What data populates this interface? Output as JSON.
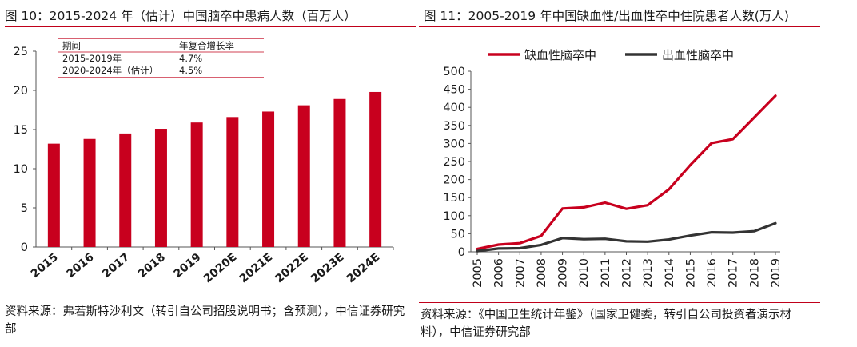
{
  "chart_data": [
    {
      "type": "bar",
      "title": "图 10：2015-2024 年（估计）中国脑卒中患病人数（百万人）",
      "categories": [
        "2015",
        "2016",
        "2017",
        "2018",
        "2019",
        "2020E",
        "2021E",
        "2022E",
        "2023E",
        "2024E"
      ],
      "values": [
        13.2,
        13.8,
        14.5,
        15.1,
        15.9,
        16.6,
        17.3,
        18.1,
        18.9,
        19.8
      ],
      "ylim": [
        0,
        25
      ],
      "yticks": [
        "0",
        "5",
        "10",
        "15",
        "20",
        "25"
      ],
      "bar_color": "#c8001e",
      "grid": false,
      "table": {
        "headers": [
          "期间",
          "年复合增长率"
        ],
        "rows": [
          [
            "2015-2019年",
            "4.7%"
          ],
          [
            "2020-2024年（估计）",
            "4.5%"
          ]
        ]
      },
      "source": "资料来源：弗若斯特沙利文（转引自公司招股说明书；含预测），中信证券研究部"
    },
    {
      "type": "line",
      "title": "图 11：2005-2019 年中国缺血性/出血性卒中住院患者人数(万人)",
      "x": [
        "2005",
        "2006",
        "2007",
        "2008",
        "2009",
        "2010",
        "2011",
        "2012",
        "2013",
        "2014",
        "2015",
        "2016",
        "2017",
        "2018",
        "2019"
      ],
      "series": [
        {
          "name": "缺血性脑卒中",
          "color": "#c8001e",
          "values": [
            8,
            20,
            24,
            44,
            120,
            123,
            136,
            119,
            129,
            173,
            240,
            301,
            312,
            372,
            432
          ]
        },
        {
          "name": "出血性脑卒中",
          "color": "#333333",
          "values": [
            2,
            9,
            10,
            19,
            38,
            35,
            36,
            29,
            28,
            34,
            45,
            54,
            53,
            57,
            79
          ]
        }
      ],
      "ylim": [
        0,
        500
      ],
      "yticks": [
        "0",
        "50",
        "100",
        "150",
        "200",
        "250",
        "300",
        "350",
        "400",
        "450",
        "500"
      ],
      "legend": "top-left",
      "grid": false,
      "source": "资料来源：《中国卫生统计年鉴》（国家卫健委，转引自公司投资者演示材料），中信证券研究部"
    }
  ]
}
